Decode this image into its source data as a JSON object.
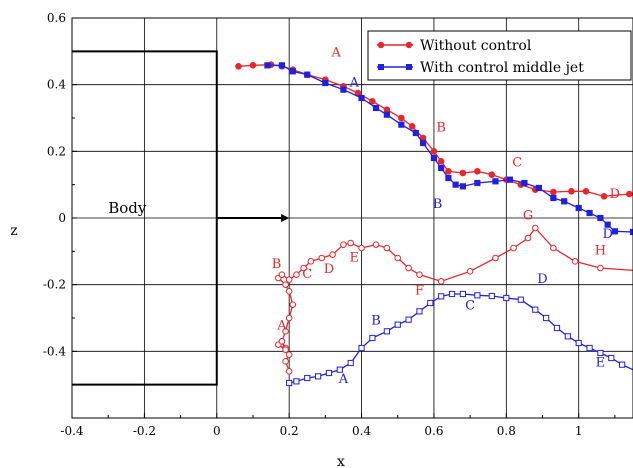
{
  "chart_data": {
    "type": "line",
    "title": "",
    "xlabel": "x",
    "ylabel": "z",
    "xlim": [
      -0.4,
      1.15
    ],
    "ylim": [
      -0.6,
      0.6
    ],
    "grid": true,
    "legend_position": "top-right",
    "x_ticks": [
      {
        "v": -0.4,
        "label": "-0.4"
      },
      {
        "v": -0.2,
        "label": "-0.2"
      },
      {
        "v": 0,
        "label": "0"
      },
      {
        "v": 0.2,
        "label": "0.2"
      },
      {
        "v": 0.4,
        "label": "0.4"
      },
      {
        "v": 0.6,
        "label": "0.6"
      },
      {
        "v": 0.8,
        "label": "0.8"
      },
      {
        "v": 1,
        "label": "1"
      }
    ],
    "y_ticks": [
      {
        "v": 0.6,
        "label": "0.6"
      },
      {
        "v": 0.4,
        "label": "0.4"
      },
      {
        "v": 0.2,
        "label": "0.2"
      },
      {
        "v": 0,
        "label": "0"
      },
      {
        "v": -0.2,
        "label": "-0.2"
      },
      {
        "v": -0.4,
        "label": "-0.4"
      }
    ],
    "colors": {
      "without": "#e8262b",
      "with": "#2020e0",
      "grid": "#000000",
      "body": "#000000"
    },
    "body": {
      "label": "Body",
      "outline": [
        [
          -0.4,
          0.5
        ],
        [
          0,
          0.5
        ],
        [
          0,
          -0.5
        ],
        [
          -0.4,
          -0.5
        ]
      ],
      "arrow": [
        [
          0,
          0
        ],
        [
          0.2,
          0
        ]
      ]
    },
    "series": [
      {
        "name": "Without control",
        "legend_label": "Without control",
        "color": "#e8262b",
        "marker": "circle",
        "lines": [
          {
            "marker": "filled",
            "points": [
              [
                0.06,
                0.455
              ],
              [
                0.1,
                0.458
              ],
              [
                0.15,
                0.46
              ],
              [
                0.18,
                0.455
              ],
              [
                0.21,
                0.445
              ],
              [
                0.25,
                0.43
              ],
              [
                0.3,
                0.415
              ],
              [
                0.35,
                0.395
              ],
              [
                0.39,
                0.375
              ],
              [
                0.43,
                0.35
              ],
              [
                0.47,
                0.325
              ],
              [
                0.51,
                0.3
              ],
              [
                0.54,
                0.275
              ],
              [
                0.57,
                0.24
              ],
              [
                0.6,
                0.2
              ],
              [
                0.62,
                0.17
              ],
              [
                0.64,
                0.14
              ],
              [
                0.68,
                0.135
              ],
              [
                0.72,
                0.14
              ],
              [
                0.76,
                0.13
              ],
              [
                0.8,
                0.115
              ],
              [
                0.84,
                0.1
              ],
              [
                0.88,
                0.085
              ],
              [
                0.93,
                0.078
              ],
              [
                0.98,
                0.08
              ],
              [
                1.02,
                0.08
              ],
              [
                1.07,
                0.065
              ],
              [
                1.14,
                0.072
              ]
            ]
          },
          {
            "marker": "hollow",
            "points": [
              [
                0.2,
                -0.46
              ],
              [
                0.19,
                -0.43
              ],
              [
                0.2,
                -0.41
              ],
              [
                0.19,
                -0.39
              ],
              [
                0.18,
                -0.37
              ],
              [
                0.19,
                -0.34
              ],
              [
                0.2,
                -0.3
              ],
              [
                0.21,
                -0.26
              ],
              [
                0.2,
                -0.22
              ],
              [
                0.19,
                -0.2
              ],
              [
                0.17,
                -0.18
              ],
              [
                0.18,
                -0.17
              ],
              [
                0.2,
                -0.185
              ],
              [
                0.22,
                -0.17
              ],
              [
                0.24,
                -0.15
              ],
              [
                0.26,
                -0.13
              ],
              [
                0.29,
                -0.12
              ],
              [
                0.32,
                -0.11
              ],
              [
                0.35,
                -0.08
              ],
              [
                0.37,
                -0.075
              ],
              [
                0.4,
                -0.09
              ],
              [
                0.44,
                -0.08
              ],
              [
                0.47,
                -0.09
              ],
              [
                0.5,
                -0.12
              ],
              [
                0.53,
                -0.15
              ],
              [
                0.56,
                -0.17
              ],
              [
                0.62,
                -0.19
              ],
              [
                0.7,
                -0.16
              ],
              [
                0.77,
                -0.12
              ],
              [
                0.82,
                -0.09
              ],
              [
                0.86,
                -0.06
              ],
              [
                0.88,
                -0.03
              ],
              [
                0.93,
                -0.09
              ],
              [
                0.99,
                -0.13
              ],
              [
                1.06,
                -0.15
              ],
              [
                1.16,
                -0.158
              ]
            ]
          },
          {
            "marker": "hollow",
            "points": [
              [
                0.17,
                -0.38
              ],
              [
                0.19,
                -0.395
              ],
              [
                0.18,
                -0.37
              ]
            ]
          }
        ]
      },
      {
        "name": "With control middle jet",
        "legend_label": "With control middle jet",
        "color": "#2020e0",
        "marker": "square",
        "lines": [
          {
            "marker": "filled",
            "points": [
              [
                0.14,
                0.458
              ],
              [
                0.18,
                0.458
              ],
              [
                0.21,
                0.44
              ],
              [
                0.25,
                0.43
              ],
              [
                0.3,
                0.405
              ],
              [
                0.35,
                0.385
              ],
              [
                0.4,
                0.36
              ],
              [
                0.44,
                0.33
              ],
              [
                0.47,
                0.31
              ],
              [
                0.51,
                0.28
              ],
              [
                0.55,
                0.255
              ],
              [
                0.57,
                0.225
              ],
              [
                0.6,
                0.18
              ],
              [
                0.62,
                0.15
              ],
              [
                0.64,
                0.12
              ],
              [
                0.66,
                0.1
              ],
              [
                0.68,
                0.095
              ],
              [
                0.72,
                0.105
              ],
              [
                0.77,
                0.11
              ],
              [
                0.81,
                0.115
              ],
              [
                0.85,
                0.105
              ],
              [
                0.89,
                0.09
              ],
              [
                0.93,
                0.06
              ],
              [
                0.96,
                0.05
              ],
              [
                1.0,
                0.03
              ],
              [
                1.03,
                0.015
              ],
              [
                1.06,
                0.0
              ],
              [
                1.08,
                -0.02
              ],
              [
                1.1,
                -0.04
              ],
              [
                1.15,
                -0.042
              ]
            ]
          },
          {
            "marker": "hollow",
            "points": [
              [
                0.2,
                -0.495
              ],
              [
                0.22,
                -0.49
              ],
              [
                0.25,
                -0.48
              ],
              [
                0.28,
                -0.475
              ],
              [
                0.31,
                -0.465
              ],
              [
                0.34,
                -0.455
              ],
              [
                0.37,
                -0.435
              ],
              [
                0.4,
                -0.39
              ],
              [
                0.43,
                -0.36
              ],
              [
                0.47,
                -0.34
              ],
              [
                0.5,
                -0.32
              ],
              [
                0.53,
                -0.305
              ],
              [
                0.56,
                -0.28
              ],
              [
                0.59,
                -0.255
              ],
              [
                0.62,
                -0.235
              ],
              [
                0.65,
                -0.228
              ],
              [
                0.68,
                -0.228
              ],
              [
                0.72,
                -0.232
              ],
              [
                0.76,
                -0.234
              ],
              [
                0.8,
                -0.24
              ],
              [
                0.84,
                -0.245
              ],
              [
                0.88,
                -0.275
              ],
              [
                0.91,
                -0.3
              ],
              [
                0.94,
                -0.33
              ],
              [
                0.97,
                -0.355
              ],
              [
                1.0,
                -0.375
              ],
              [
                1.03,
                -0.39
              ],
              [
                1.06,
                -0.405
              ],
              [
                1.09,
                -0.42
              ],
              [
                1.12,
                -0.44
              ],
              [
                1.16,
                -0.46
              ]
            ]
          }
        ]
      }
    ],
    "annotations": [
      {
        "text": "A",
        "x": 0.33,
        "y": 0.485,
        "color": "#e8262b"
      },
      {
        "text": "A",
        "x": 0.38,
        "y": 0.395,
        "color": "#2020e0"
      },
      {
        "text": "B",
        "x": 0.62,
        "y": 0.26,
        "color": "#e8262b"
      },
      {
        "text": "B",
        "x": 0.61,
        "y": 0.03,
        "color": "#2020e0"
      },
      {
        "text": "C",
        "x": 0.83,
        "y": 0.155,
        "color": "#e8262b"
      },
      {
        "text": "D",
        "x": 1.1,
        "y": 0.06,
        "color": "#e8262b"
      },
      {
        "text": "D",
        "x": 1.08,
        "y": -0.06,
        "color": "#2020e0"
      },
      {
        "text": "B",
        "x": 0.165,
        "y": -0.15,
        "color": "#e8262b"
      },
      {
        "text": "C",
        "x": 0.25,
        "y": -0.18,
        "color": "#e8262b"
      },
      {
        "text": "D",
        "x": 0.31,
        "y": -0.165,
        "color": "#e8262b"
      },
      {
        "text": "E",
        "x": 0.38,
        "y": -0.13,
        "color": "#e8262b"
      },
      {
        "text": "F",
        "x": 0.56,
        "y": -0.23,
        "color": "#e8262b"
      },
      {
        "text": "G",
        "x": 0.86,
        "y": -0.005,
        "color": "#e8262b"
      },
      {
        "text": "H",
        "x": 1.06,
        "y": -0.11,
        "color": "#e8262b"
      },
      {
        "text": "A",
        "x": 0.18,
        "y": -0.335,
        "color": "#e8262b"
      },
      {
        "text": "A",
        "x": 0.35,
        "y": -0.495,
        "color": "#2020e0"
      },
      {
        "text": "B",
        "x": 0.44,
        "y": -0.32,
        "color": "#2020e0"
      },
      {
        "text": "C",
        "x": 0.7,
        "y": -0.275,
        "color": "#2020e0"
      },
      {
        "text": "D",
        "x": 0.9,
        "y": -0.195,
        "color": "#2020e0"
      },
      {
        "text": "E",
        "x": 1.06,
        "y": -0.445,
        "color": "#2020e0"
      }
    ]
  }
}
